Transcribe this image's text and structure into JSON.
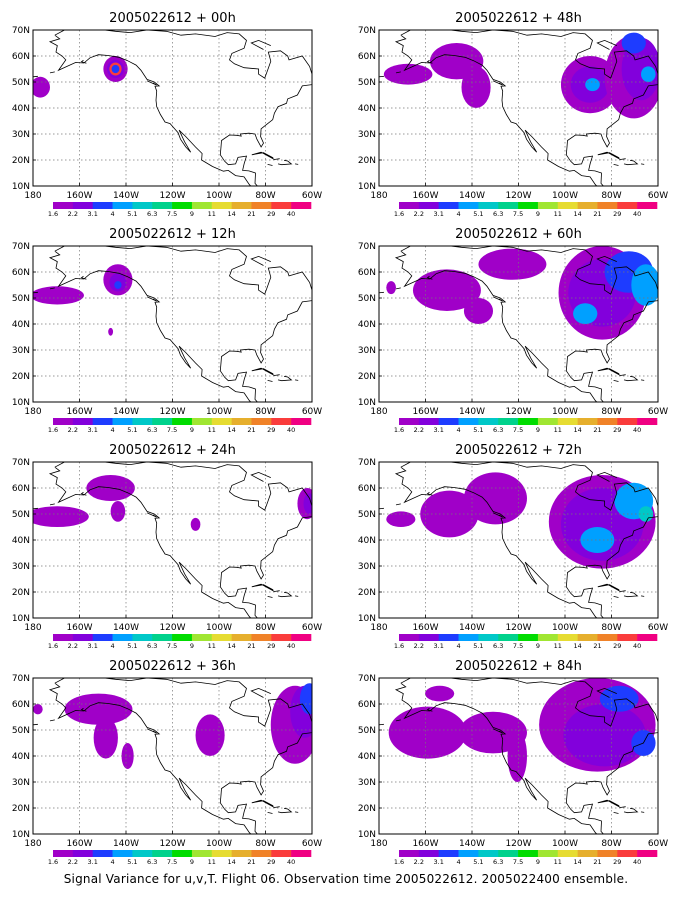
{
  "chart_data": {
    "type": "heatmap",
    "caption": "Signal Variance for u,v,T. Flight 06. Observation time 2005022612. 2005022400 ensemble.",
    "x_ticks": [
      "180",
      "160W",
      "140W",
      "120W",
      "100W",
      "80W",
      "60W"
    ],
    "y_ticks": [
      "10N",
      "20N",
      "30N",
      "40N",
      "50N",
      "60N",
      "70N"
    ],
    "xlim_lon": [
      -175,
      -60
    ],
    "ylim_lat": [
      10,
      70
    ],
    "grid": "dotted",
    "colorbar": {
      "labels": [
        "1.6",
        "2.2",
        "3.1",
        "4",
        "5.1",
        "6.3",
        "7.5",
        "9",
        "11",
        "14",
        "21",
        "29",
        "40"
      ],
      "colors": [
        "#a000c8",
        "#8200dc",
        "#1e3cff",
        "#00a0ff",
        "#00c8c8",
        "#00d28c",
        "#00dc00",
        "#a0e632",
        "#e6dc32",
        "#e6af2d",
        "#f08228",
        "#fa3c3c",
        "#f00082"
      ]
    },
    "panels": [
      {
        "title": "2005022612 + 00h",
        "blobs": [
          {
            "lon": -172,
            "lat": 48,
            "rx": 4,
            "ry": 4,
            "level": 0
          },
          {
            "lon": -141,
            "lat": 55,
            "rx": 5,
            "ry": 5,
            "level": 0
          },
          {
            "lon": -141,
            "lat": 55,
            "rx": 3.5,
            "ry": 3.5,
            "level": 1
          },
          {
            "lon": -141,
            "lat": 55,
            "rx": 2.5,
            "ry": 2.5,
            "level": 11
          },
          {
            "lon": -141,
            "lat": 55,
            "rx": 1.6,
            "ry": 1.6,
            "level": 2
          }
        ]
      },
      {
        "title": "2005022612 + 12h",
        "blobs": [
          {
            "lon": -165,
            "lat": 51,
            "rx": 11,
            "ry": 3.5,
            "level": 0
          },
          {
            "lon": -140,
            "lat": 57,
            "rx": 6,
            "ry": 6,
            "level": 0
          },
          {
            "lon": -140,
            "lat": 56,
            "rx": 3.5,
            "ry": 3.5,
            "level": 1
          },
          {
            "lon": -140,
            "lat": 55,
            "rx": 1.5,
            "ry": 1.5,
            "level": 2
          },
          {
            "lon": -143,
            "lat": 37,
            "rx": 1,
            "ry": 1.5,
            "level": 0
          }
        ]
      },
      {
        "title": "2005022612 + 24h",
        "blobs": [
          {
            "lon": -165,
            "lat": 49,
            "rx": 13,
            "ry": 4,
            "level": 0
          },
          {
            "lon": -143,
            "lat": 60,
            "rx": 10,
            "ry": 5,
            "level": 0
          },
          {
            "lon": -140,
            "lat": 51,
            "rx": 3,
            "ry": 4,
            "level": 0
          },
          {
            "lon": -108,
            "lat": 46,
            "rx": 2,
            "ry": 2.5,
            "level": 0
          },
          {
            "lon": -62,
            "lat": 54,
            "rx": 4,
            "ry": 6,
            "level": 0
          },
          {
            "lon": -61,
            "lat": 54,
            "rx": 2.5,
            "ry": 4,
            "level": 1
          }
        ]
      },
      {
        "title": "2005022612 + 36h",
        "blobs": [
          {
            "lon": -173,
            "lat": 58,
            "rx": 2,
            "ry": 2,
            "level": 0
          },
          {
            "lon": -148,
            "lat": 58,
            "rx": 14,
            "ry": 6,
            "level": 0
          },
          {
            "lon": -145,
            "lat": 47,
            "rx": 5,
            "ry": 8,
            "level": 0
          },
          {
            "lon": -136,
            "lat": 40,
            "rx": 2.5,
            "ry": 5,
            "level": 0
          },
          {
            "lon": -102,
            "lat": 48,
            "rx": 6,
            "ry": 8,
            "level": 0
          },
          {
            "lon": -67,
            "lat": 52,
            "rx": 10,
            "ry": 15,
            "level": 0
          },
          {
            "lon": -63,
            "lat": 57,
            "rx": 6,
            "ry": 10,
            "level": 1
          },
          {
            "lon": -61,
            "lat": 62,
            "rx": 4,
            "ry": 6,
            "level": 2
          }
        ]
      },
      {
        "title": "2005022612 + 48h",
        "blobs": [
          {
            "lon": -163,
            "lat": 53,
            "rx": 10,
            "ry": 4,
            "level": 0
          },
          {
            "lon": -143,
            "lat": 58,
            "rx": 11,
            "ry": 7,
            "level": 0
          },
          {
            "lon": -135,
            "lat": 48,
            "rx": 6,
            "ry": 8,
            "level": 0
          },
          {
            "lon": -88,
            "lat": 49,
            "rx": 12,
            "ry": 11,
            "level": 0
          },
          {
            "lon": -88,
            "lat": 49,
            "rx": 8,
            "ry": 7,
            "level": 1
          },
          {
            "lon": -87,
            "lat": 49,
            "rx": 3,
            "ry": 2.5,
            "level": 3
          },
          {
            "lon": -70,
            "lat": 52,
            "rx": 12,
            "ry": 16,
            "level": 0
          },
          {
            "lon": -67,
            "lat": 55,
            "rx": 8,
            "ry": 12,
            "level": 1
          },
          {
            "lon": -70,
            "lat": 65,
            "rx": 5,
            "ry": 4,
            "level": 2
          },
          {
            "lon": -64,
            "lat": 53,
            "rx": 3,
            "ry": 3,
            "level": 3
          }
        ]
      },
      {
        "title": "2005022612 + 60h",
        "blobs": [
          {
            "lon": -170,
            "lat": 54,
            "rx": 2,
            "ry": 2.5,
            "level": 0
          },
          {
            "lon": -147,
            "lat": 53,
            "rx": 14,
            "ry": 8,
            "level": 0
          },
          {
            "lon": -134,
            "lat": 45,
            "rx": 6,
            "ry": 5,
            "level": 0
          },
          {
            "lon": -120,
            "lat": 63,
            "rx": 14,
            "ry": 6,
            "level": 0
          },
          {
            "lon": -83,
            "lat": 52,
            "rx": 18,
            "ry": 18,
            "level": 0
          },
          {
            "lon": -83,
            "lat": 52,
            "rx": 14,
            "ry": 13,
            "level": 1
          },
          {
            "lon": -90,
            "lat": 44,
            "rx": 5,
            "ry": 4,
            "level": 3
          },
          {
            "lon": -72,
            "lat": 60,
            "rx": 10,
            "ry": 8,
            "level": 2
          },
          {
            "lon": -65,
            "lat": 55,
            "rx": 6,
            "ry": 8,
            "level": 3
          }
        ]
      },
      {
        "title": "2005022612 + 72h",
        "blobs": [
          {
            "lon": -166,
            "lat": 48,
            "rx": 6,
            "ry": 3,
            "level": 0
          },
          {
            "lon": -146,
            "lat": 50,
            "rx": 12,
            "ry": 9,
            "level": 0
          },
          {
            "lon": -127,
            "lat": 56,
            "rx": 13,
            "ry": 10,
            "level": 0
          },
          {
            "lon": -83,
            "lat": 47,
            "rx": 22,
            "ry": 18,
            "level": 0
          },
          {
            "lon": -83,
            "lat": 46,
            "rx": 17,
            "ry": 14,
            "level": 1
          },
          {
            "lon": -85,
            "lat": 40,
            "rx": 7,
            "ry": 5,
            "level": 3
          },
          {
            "lon": -70,
            "lat": 55,
            "rx": 8,
            "ry": 7,
            "level": 3
          },
          {
            "lon": -65,
            "lat": 50,
            "rx": 3,
            "ry": 3,
            "level": 4
          }
        ]
      },
      {
        "title": "2005022612 + 84h",
        "blobs": [
          {
            "lon": -155,
            "lat": 49,
            "rx": 16,
            "ry": 10,
            "level": 0
          },
          {
            "lon": -150,
            "lat": 64,
            "rx": 6,
            "ry": 3,
            "level": 0
          },
          {
            "lon": -128,
            "lat": 49,
            "rx": 14,
            "ry": 8,
            "level": 0
          },
          {
            "lon": -118,
            "lat": 40,
            "rx": 4,
            "ry": 10,
            "level": 0
          },
          {
            "lon": -85,
            "lat": 52,
            "rx": 24,
            "ry": 18,
            "level": 0
          },
          {
            "lon": -82,
            "lat": 48,
            "rx": 17,
            "ry": 12,
            "level": 1
          },
          {
            "lon": -76,
            "lat": 62,
            "rx": 8,
            "ry": 5,
            "level": 2
          },
          {
            "lon": -66,
            "lat": 45,
            "rx": 5,
            "ry": 5,
            "level": 2
          }
        ]
      }
    ]
  }
}
